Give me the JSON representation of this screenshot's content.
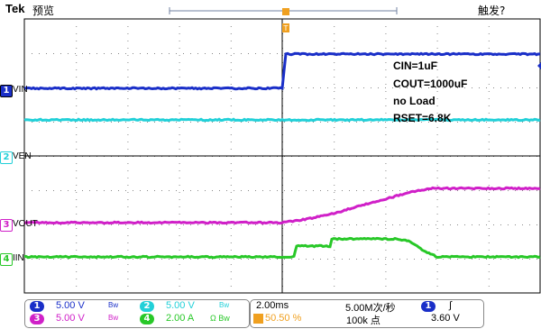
{
  "header": {
    "brand": "Tek",
    "mode": "预览",
    "trigger_status": "触发?"
  },
  "trigger_marker": "T",
  "channels": [
    {
      "num": "1",
      "label": "VIN",
      "color": "#1a2fc8"
    },
    {
      "num": "2",
      "label": "VEN",
      "color": "#22d0d8"
    },
    {
      "num": "3",
      "label": "VOUT",
      "color": "#d020c8"
    },
    {
      "num": "4",
      "label": "IIN",
      "color": "#28c828"
    }
  ],
  "annotations": [
    "CIN=1uF",
    "COUT=1000uF",
    "no  Load",
    "RSET=6.8K"
  ],
  "status": {
    "ch1_scale": "5.00 V",
    "ch2_scale": "5.00 V",
    "ch3_scale": "5.00 V",
    "ch4_scale": "2.00 A",
    "bw": "Bw",
    "ch4_suffix": "Ω Bw",
    "timebase": "2.00ms",
    "trig_pos": "50.50 %",
    "sample_rate": "5.00M次/秒",
    "record_length": "100k 点",
    "trig_source": "1",
    "trig_slope": "∫",
    "trig_level": "3.60 V"
  }
}
